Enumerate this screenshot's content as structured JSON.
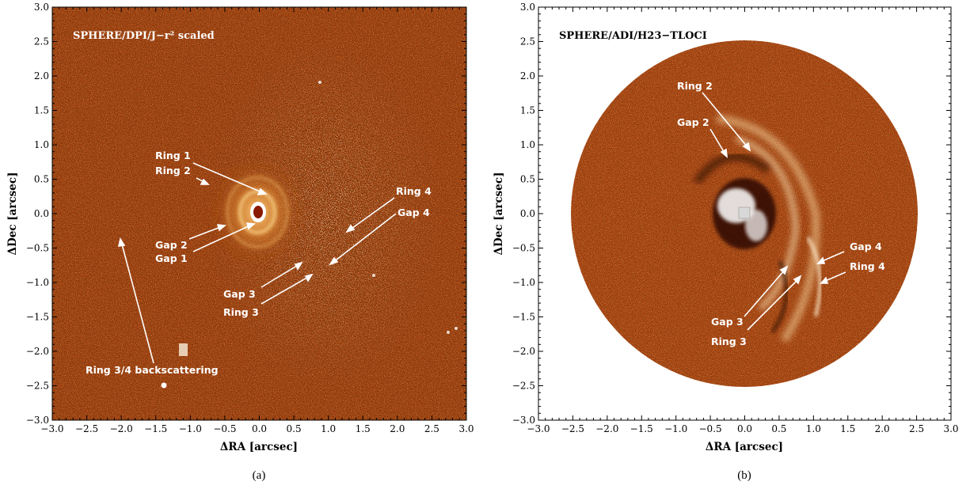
{
  "panel_a": {
    "title": "SPHERE/DPI/J−r² scaled",
    "xlabel": "ΔRA [arcsec]",
    "ylabel": "ΔDec [arcsec]",
    "caption": "(a)",
    "ticks": [
      "−3.0",
      "−2.5",
      "−2.0",
      "−1.5",
      "−1.0",
      "−0.5",
      "0.0",
      "0.5",
      "1.0",
      "1.5",
      "2.0",
      "2.5",
      "3.0"
    ],
    "annotations": {
      "ring1": "Ring 1",
      "ring2": "Ring 2",
      "ring4": "Ring 4",
      "gap4": "Gap 4",
      "gap2": "Gap 2",
      "gap1": "Gap 1",
      "gap3": "Gap 3",
      "ring3": "Ring 3",
      "backscatter": "Ring 3/4 backscattering"
    }
  },
  "panel_b": {
    "title": "SPHERE/ADI/H23−TLOCI",
    "xlabel": "ΔRA [arcsec]",
    "ylabel": "ΔDec [arcsec]",
    "caption": "(b)",
    "ticks": [
      "−3.0",
      "−2.5",
      "−2.0",
      "−1.5",
      "−1.0",
      "−0.5",
      "0.0",
      "0.5",
      "1.0",
      "1.5",
      "2.0",
      "2.5",
      "3.0"
    ],
    "annotations": {
      "ring2": "Ring 2",
      "gap2": "Gap 2",
      "gap4": "Gap 4",
      "ring4": "Ring 4",
      "gap3": "Gap 3",
      "ring3": "Ring 3"
    }
  },
  "colors": {
    "map_base": "#9a3a0c",
    "map_bright": "#f4cf8a",
    "map_dark": "#3a0c02"
  }
}
